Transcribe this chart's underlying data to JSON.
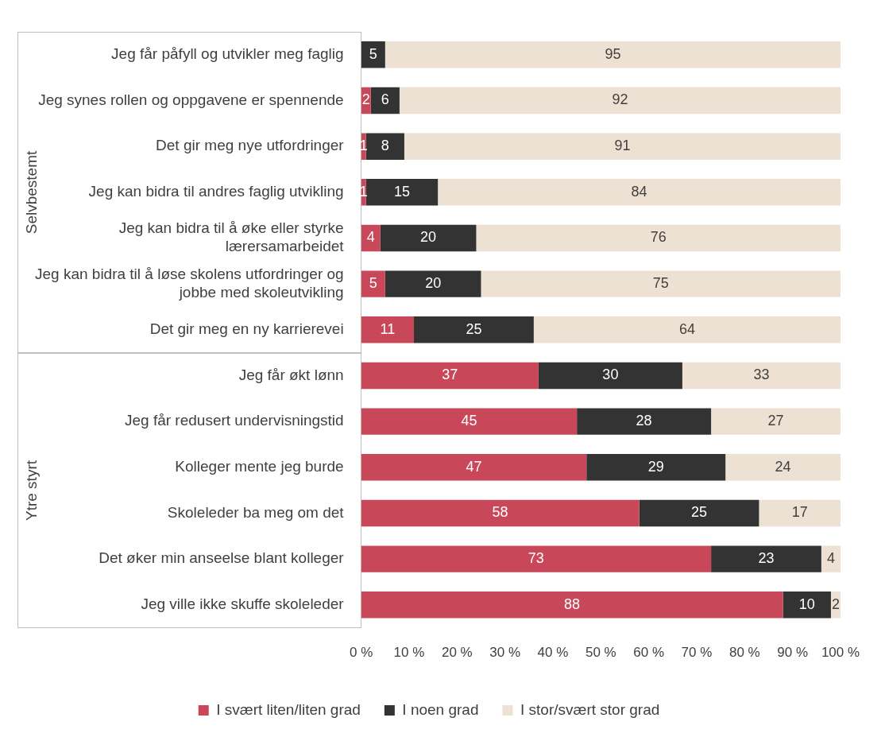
{
  "chart_data": {
    "type": "bar",
    "orientation": "horizontal",
    "stacked": true,
    "categories": [
      "Jeg får påfyll og utvikler meg faglig",
      "Jeg synes rollen og oppgavene er spennende",
      "Det gir meg nye utfordringer",
      "Jeg kan bidra til andres faglig utvikling",
      "Jeg kan bidra til å øke eller styrke lærersamarbeidet",
      "Jeg kan bidra til å løse skolens utfordringer og jobbe med skoleutvikling",
      "Det gir meg en ny karrierevei",
      "Jeg får økt lønn",
      "Jeg får redusert undervisningstid",
      "Kolleger mente jeg burde",
      "Skoleleder ba meg om det",
      "Det øker min anseelse blant kolleger",
      "Jeg ville ikke skuffe skoleleder"
    ],
    "series": [
      {
        "name": "I svært liten/liten grad",
        "color": "#c8485a",
        "values": [
          0,
          2,
          1,
          1,
          4,
          5,
          11,
          37,
          45,
          47,
          58,
          73,
          88
        ],
        "value_labels": [
          null,
          "2",
          "1",
          "1",
          "4",
          "5",
          "11",
          "37",
          "45",
          "47",
          "58",
          "73",
          "88"
        ]
      },
      {
        "name": "I noen grad",
        "color": "#333333",
        "values": [
          5,
          6,
          8,
          15,
          20,
          20,
          25,
          30,
          28,
          29,
          25,
          23,
          10
        ],
        "value_labels": [
          "5",
          "6",
          "8",
          "15",
          "20",
          "20",
          "25",
          "30",
          "28",
          "29",
          "25",
          "23",
          "10"
        ]
      },
      {
        "name": "I stor/svært stor grad",
        "color": "#ede1d3",
        "values": [
          95,
          92,
          91,
          84,
          76,
          75,
          64,
          33,
          27,
          24,
          17,
          4,
          2
        ],
        "value_labels": [
          "95",
          "92",
          "91",
          "84",
          "76",
          "75",
          "64",
          "33",
          "27",
          "24",
          "17",
          "4",
          "2"
        ]
      }
    ],
    "xlim": [
      0,
      100
    ],
    "xticks": [
      {
        "value": 0,
        "label": "0 %"
      },
      {
        "value": 10,
        "label": "10 %"
      },
      {
        "value": 20,
        "label": "20 %"
      },
      {
        "value": 30,
        "label": "30 %"
      },
      {
        "value": 40,
        "label": "40 %"
      },
      {
        "value": 50,
        "label": "50 %"
      },
      {
        "value": 60,
        "label": "60 %"
      },
      {
        "value": 70,
        "label": "70 %"
      },
      {
        "value": 80,
        "label": "80 %"
      },
      {
        "value": 90,
        "label": "90 %"
      },
      {
        "value": 100,
        "label": "100 %"
      }
    ],
    "grid": false,
    "legend": "bottom",
    "annotations": [
      "Selvbestemt",
      "Ytre styrt"
    ]
  }
}
